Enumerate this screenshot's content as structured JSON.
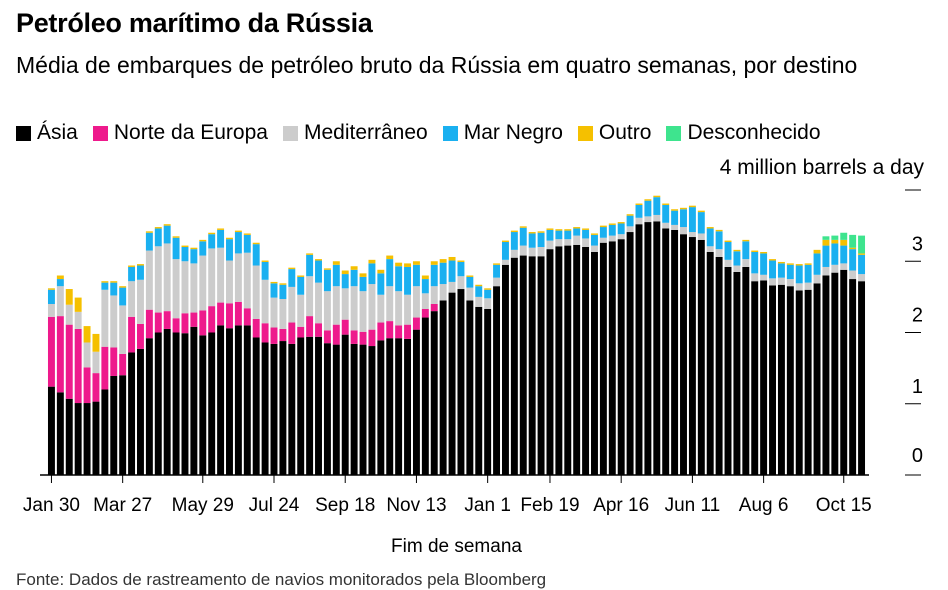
{
  "title": "Petróleo marítimo da Rússia",
  "subtitle": "Média de embarques de petróleo bruto da Rússia em quatro semanas, por destino",
  "unit_label": "4 million barrels a day",
  "source": "Fonte: Dados de rastreamento de navios monitorados pela Bloomberg",
  "colors": {
    "asia": "#000000",
    "north_europe": "#ee1a8c",
    "mediterranean": "#cccccc",
    "black_sea": "#1ab0f0",
    "other": "#f5c000",
    "unknown": "#3ee48e"
  },
  "chart_data": {
    "type": "bar",
    "stacked": true,
    "xlabel": "Fim de semana",
    "ylabel": "",
    "unit": "4 million barrels a day",
    "ylim": [
      0,
      4
    ],
    "yticks": [
      0,
      1,
      2,
      3
    ],
    "grid": false,
    "legend_position": "top",
    "x_tick_labels": [
      "Jan 30",
      "Mar 27",
      "May 29",
      "Jul 24",
      "Sep 18",
      "Nov 13",
      "Jan 1",
      "Feb 19",
      "Apr 16",
      "Jun 11",
      "Aug 6",
      "Oct 15"
    ],
    "x_tick_indices": [
      0,
      8,
      17,
      25,
      33,
      41,
      49,
      56,
      64,
      72,
      80,
      89
    ],
    "series": [
      {
        "name": "Ásia",
        "key": "asia",
        "values": [
          1.24,
          1.16,
          1.07,
          1.01,
          1.01,
          1.03,
          1.2,
          1.39,
          1.4,
          1.72,
          1.77,
          1.92,
          2.0,
          2.05,
          2.0,
          1.99,
          2.08,
          1.96,
          2.0,
          2.1,
          2.06,
          2.1,
          2.1,
          1.93,
          1.86,
          1.84,
          1.88,
          1.84,
          1.93,
          1.94,
          1.94,
          1.85,
          1.83,
          1.97,
          1.84,
          1.83,
          1.81,
          1.89,
          1.92,
          1.92,
          1.91,
          2.04,
          2.21,
          2.3,
          2.45,
          2.56,
          2.61,
          2.45,
          2.36,
          2.33,
          2.65,
          2.95,
          3.05,
          3.08,
          3.07,
          3.07,
          3.17,
          3.21,
          3.22,
          3.23,
          3.2,
          3.13,
          3.26,
          3.28,
          3.31,
          3.41,
          3.52,
          3.55,
          3.56,
          3.46,
          3.44,
          3.38,
          3.34,
          3.3,
          3.13,
          3.06,
          2.92,
          2.85,
          2.92,
          2.72,
          2.73,
          2.66,
          2.67,
          2.65,
          2.59,
          2.6,
          2.69,
          2.8,
          2.84,
          2.88,
          2.75,
          2.72
        ]
      },
      {
        "name": "Norte da Europa",
        "key": "north_europe",
        "values": [
          0.98,
          1.07,
          1.04,
          1.04,
          0.5,
          0.4,
          0.6,
          0.4,
          0.3,
          0.5,
          0.35,
          0.4,
          0.28,
          0.25,
          0.2,
          0.28,
          0.2,
          0.35,
          0.37,
          0.32,
          0.35,
          0.33,
          0.24,
          0.26,
          0.27,
          0.23,
          0.17,
          0.3,
          0.15,
          0.29,
          0.19,
          0.18,
          0.28,
          0.21,
          0.19,
          0.18,
          0.23,
          0.25,
          0.24,
          0.18,
          0.2,
          0.17,
          0.12,
          0.1,
          0.0,
          0.0,
          0.0,
          0.0,
          0.0,
          0.0,
          0.0,
          0.0,
          0.0,
          0.0,
          0.0,
          0.0,
          0.0,
          0.0,
          0.0,
          0.0,
          0.0,
          0.0,
          0.0,
          0.0,
          0.0,
          0.0,
          0.0,
          0.0,
          0.0,
          0.0,
          0.0,
          0.0,
          0.0,
          0.0,
          0.0,
          0.0,
          0.0,
          0.0,
          0.0,
          0.0,
          0.0,
          0.0,
          0.0,
          0.0,
          0.0,
          0.0,
          0.0,
          0.0,
          0.0,
          0.0,
          0.0,
          0.0
        ]
      },
      {
        "name": "Mediterrâneo",
        "key": "mediterranean",
        "values": [
          0.18,
          0.42,
          0.28,
          0.24,
          0.35,
          0.3,
          0.8,
          0.73,
          0.68,
          0.5,
          0.62,
          0.83,
          0.93,
          0.95,
          0.83,
          0.73,
          0.69,
          0.77,
          0.81,
          0.77,
          0.6,
          0.68,
          0.78,
          0.75,
          0.61,
          0.42,
          0.42,
          0.5,
          0.45,
          0.56,
          0.57,
          0.55,
          0.54,
          0.44,
          0.62,
          0.57,
          0.64,
          0.39,
          0.49,
          0.48,
          0.42,
          0.44,
          0.22,
          0.25,
          0.23,
          0.15,
          0.18,
          0.18,
          0.14,
          0.15,
          0.12,
          0.07,
          0.11,
          0.14,
          0.12,
          0.13,
          0.12,
          0.1,
          0.09,
          0.13,
          0.12,
          0.09,
          0.07,
          0.08,
          0.07,
          0.08,
          0.09,
          0.08,
          0.09,
          0.08,
          0.07,
          0.1,
          0.07,
          0.09,
          0.08,
          0.11,
          0.1,
          0.09,
          0.11,
          0.11,
          0.08,
          0.1,
          0.1,
          0.1,
          0.1,
          0.1,
          0.12,
          0.12,
          0.11,
          0.09,
          0.12,
          0.1
        ]
      },
      {
        "name": "Mar Negro",
        "key": "black_sea",
        "values": [
          0.2,
          0.1,
          0.0,
          0.0,
          0.0,
          0.0,
          0.1,
          0.18,
          0.25,
          0.2,
          0.2,
          0.25,
          0.25,
          0.25,
          0.3,
          0.2,
          0.2,
          0.2,
          0.2,
          0.25,
          0.3,
          0.3,
          0.25,
          0.3,
          0.25,
          0.2,
          0.2,
          0.25,
          0.25,
          0.3,
          0.31,
          0.3,
          0.3,
          0.2,
          0.23,
          0.2,
          0.29,
          0.3,
          0.38,
          0.35,
          0.39,
          0.3,
          0.2,
          0.3,
          0.3,
          0.3,
          0.2,
          0.15,
          0.15,
          0.12,
          0.18,
          0.25,
          0.25,
          0.25,
          0.2,
          0.2,
          0.15,
          0.12,
          0.12,
          0.1,
          0.12,
          0.15,
          0.15,
          0.15,
          0.15,
          0.15,
          0.18,
          0.22,
          0.25,
          0.25,
          0.2,
          0.25,
          0.35,
          0.3,
          0.25,
          0.25,
          0.25,
          0.2,
          0.25,
          0.3,
          0.3,
          0.25,
          0.2,
          0.2,
          0.25,
          0.25,
          0.3,
          0.3,
          0.3,
          0.25,
          0.3,
          0.27
        ]
      },
      {
        "name": "Outro",
        "key": "other",
        "values": [
          0.02,
          0.05,
          0.22,
          0.2,
          0.23,
          0.25,
          0.02,
          0.02,
          0.02,
          0.02,
          0.02,
          0.02,
          0.02,
          0.02,
          0.02,
          0.02,
          0.02,
          0.02,
          0.02,
          0.02,
          0.02,
          0.02,
          0.02,
          0.02,
          0.02,
          0.02,
          0.02,
          0.02,
          0.02,
          0.02,
          0.02,
          0.02,
          0.05,
          0.05,
          0.05,
          0.05,
          0.05,
          0.05,
          0.05,
          0.05,
          0.05,
          0.05,
          0.05,
          0.05,
          0.05,
          0.05,
          0.02,
          0.02,
          0.02,
          0.02,
          0.02,
          0.02,
          0.02,
          0.02,
          0.02,
          0.02,
          0.02,
          0.02,
          0.02,
          0.02,
          0.02,
          0.02,
          0.02,
          0.02,
          0.02,
          0.02,
          0.02,
          0.02,
          0.02,
          0.02,
          0.02,
          0.02,
          0.02,
          0.02,
          0.02,
          0.02,
          0.02,
          0.02,
          0.02,
          0.02,
          0.02,
          0.02,
          0.02,
          0.02,
          0.02,
          0.02,
          0.05,
          0.08,
          0.05,
          0.08,
          0.02,
          0.02
        ]
      },
      {
        "name": "Desconhecido",
        "key": "unknown",
        "values": [
          0.0,
          0.0,
          0.0,
          0.0,
          0.0,
          0.0,
          0.0,
          0.0,
          0.0,
          0.0,
          0.0,
          0.0,
          0.0,
          0.0,
          0.0,
          0.0,
          0.0,
          0.0,
          0.0,
          0.0,
          0.0,
          0.0,
          0.0,
          0.0,
          0.0,
          0.0,
          0.0,
          0.0,
          0.0,
          0.0,
          0.0,
          0.0,
          0.0,
          0.0,
          0.0,
          0.0,
          0.0,
          0.0,
          0.0,
          0.0,
          0.0,
          0.0,
          0.0,
          0.0,
          0.0,
          0.0,
          0.0,
          0.0,
          0.0,
          0.0,
          0.0,
          0.0,
          0.0,
          0.0,
          0.0,
          0.0,
          0.0,
          0.0,
          0.0,
          0.0,
          0.0,
          0.0,
          0.0,
          0.0,
          0.0,
          0.0,
          0.0,
          0.0,
          0.0,
          0.0,
          0.0,
          0.0,
          0.0,
          0.0,
          0.0,
          0.0,
          0.0,
          0.0,
          0.0,
          0.0,
          0.0,
          0.0,
          0.0,
          0.0,
          0.0,
          0.0,
          0.0,
          0.05,
          0.06,
          0.1,
          0.18,
          0.25
        ]
      }
    ]
  }
}
